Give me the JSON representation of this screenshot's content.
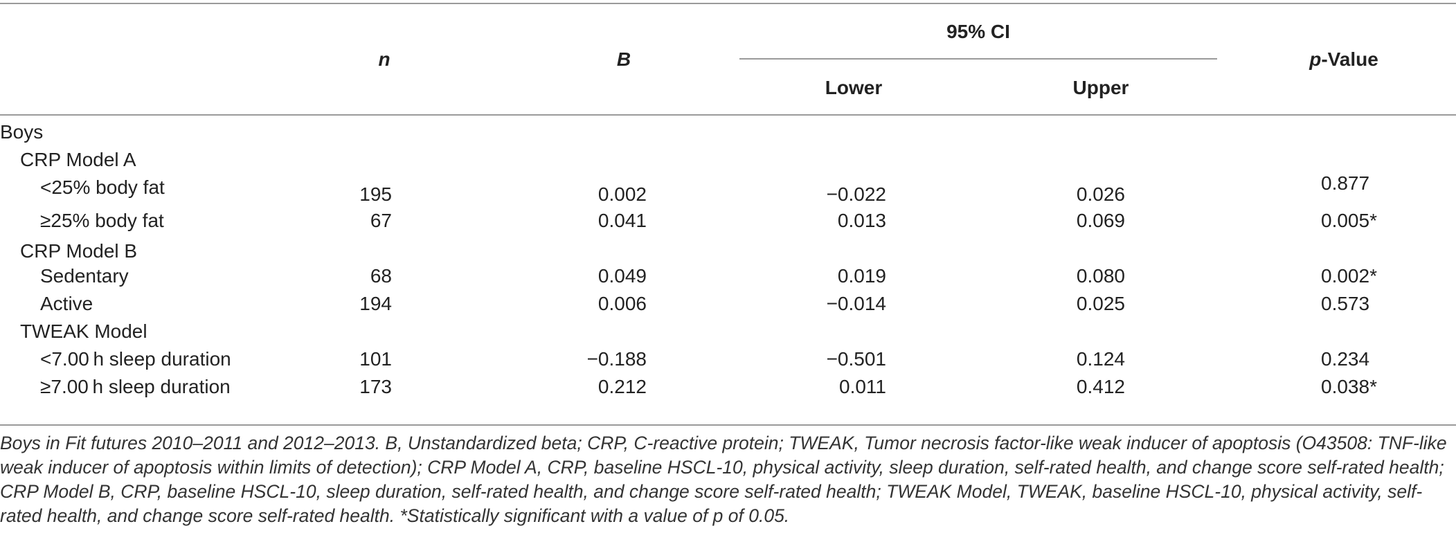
{
  "header": {
    "n": "n",
    "b": "B",
    "ci": "95% CI",
    "lower": "Lower",
    "upper": "Upper",
    "p_italic": "p",
    "p_rest": "-Value"
  },
  "rows": [
    {
      "label": "Boys",
      "level": 0,
      "n": "",
      "b": "",
      "lower": "",
      "upper": "",
      "p": ""
    },
    {
      "label": "CRP Model A",
      "level": 1,
      "n": "",
      "b": "",
      "lower": "",
      "upper": "",
      "p": ""
    },
    {
      "label": "<25% body fat",
      "level": 2,
      "n": "195",
      "b": "0.002",
      "lower": "−0.022",
      "upper": "0.026",
      "p": "0.877"
    },
    {
      "label": "≥25% body fat",
      "level": 2,
      "n": "67",
      "b": "0.041",
      "lower": "0.013",
      "upper": "0.069",
      "p": "0.005*"
    },
    {
      "label": "CRP Model B",
      "level": 1,
      "n": "",
      "b": "",
      "lower": "",
      "upper": "",
      "p": ""
    },
    {
      "label": "Sedentary",
      "level": 2,
      "n": "68",
      "b": "0.049",
      "lower": "0.019",
      "upper": "0.080",
      "p": "0.002*"
    },
    {
      "label": "Active",
      "level": 2,
      "n": "194",
      "b": "0.006",
      "lower": "−0.014",
      "upper": "0.025",
      "p": "0.573"
    },
    {
      "label": "TWEAK Model",
      "level": 1,
      "n": "",
      "b": "",
      "lower": "",
      "upper": "",
      "p": ""
    },
    {
      "label": "<7.00 h sleep duration",
      "level": 2,
      "n": "101",
      "b": "−0.188",
      "lower": "−0.501",
      "upper": "0.124",
      "p": "0.234"
    },
    {
      "label": "≥7.00 h sleep duration",
      "level": 2,
      "n": "173",
      "b": "0.212",
      "lower": "0.011",
      "upper": "0.412",
      "p": "0.038*"
    }
  ],
  "footnote": "Boys in Fit futures 2010–2011 and 2012–2013. B, Unstandardized beta; CRP, C-reactive protein; TWEAK, Tumor necrosis factor-like weak inducer of apoptosis (O43508: TNF-like weak inducer of apoptosis within limits of detection); CRP Model A, CRP, baseline HSCL-10, physical activity, sleep duration, self-rated health, and change score self-rated health; CRP Model B, CRP, baseline HSCL-10, sleep duration, self-rated health, and change score self-rated health; TWEAK Model, TWEAK, baseline HSCL-10, physical activity, self-rated health, and change score self-rated health. *Statistically significant with a value of p of 0.05."
}
